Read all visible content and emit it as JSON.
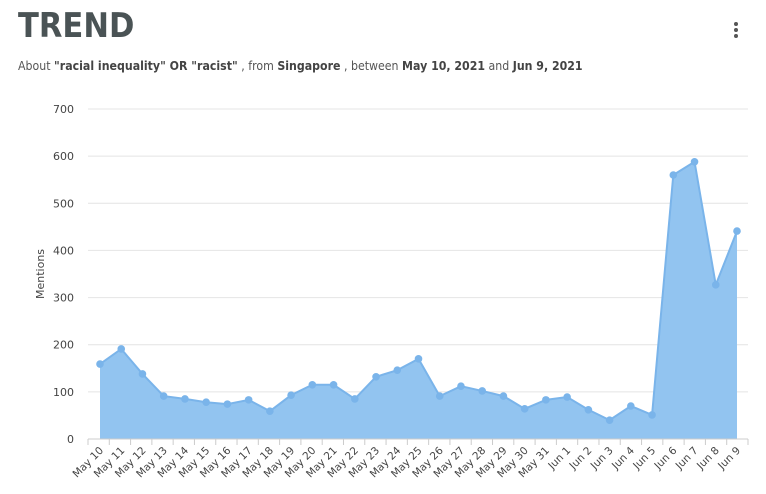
{
  "header": {
    "title": "TREND",
    "subtitle": {
      "about": "About",
      "query": "\"racial inequality\" OR \"racist\"",
      "from": ", from",
      "location": "Singapore",
      "between": ", between",
      "start": "May 10, 2021",
      "and": "and",
      "end": "Jun 9, 2021"
    },
    "menu_icon": "more-vertical-icon"
  },
  "chart_data": {
    "type": "area",
    "title": "",
    "xlabel": "",
    "ylabel": "Mentions",
    "ylim": [
      0,
      700
    ],
    "yticks": [
      0,
      100,
      200,
      300,
      400,
      500,
      600,
      700
    ],
    "grid": true,
    "color": "#7ab4ea",
    "fill": "#92c4f0",
    "categories": [
      "May 10",
      "May 11",
      "May 12",
      "May 13",
      "May 14",
      "May 15",
      "May 16",
      "May 17",
      "May 18",
      "May 19",
      "May 20",
      "May 21",
      "May 22",
      "May 23",
      "May 24",
      "May 25",
      "May 26",
      "May 27",
      "May 28",
      "May 29",
      "May 30",
      "May 31",
      "Jun 1",
      "Jun 2",
      "Jun 3",
      "Jun 4",
      "Jun 5",
      "Jun 6",
      "Jun 7",
      "Jun 8",
      "Jun 9"
    ],
    "values": [
      159,
      191,
      138,
      91,
      85,
      78,
      74,
      83,
      59,
      93,
      115,
      115,
      85,
      132,
      146,
      170,
      91,
      112,
      102,
      91,
      64,
      83,
      89,
      62,
      40,
      70,
      51,
      560,
      588,
      327,
      441
    ]
  }
}
